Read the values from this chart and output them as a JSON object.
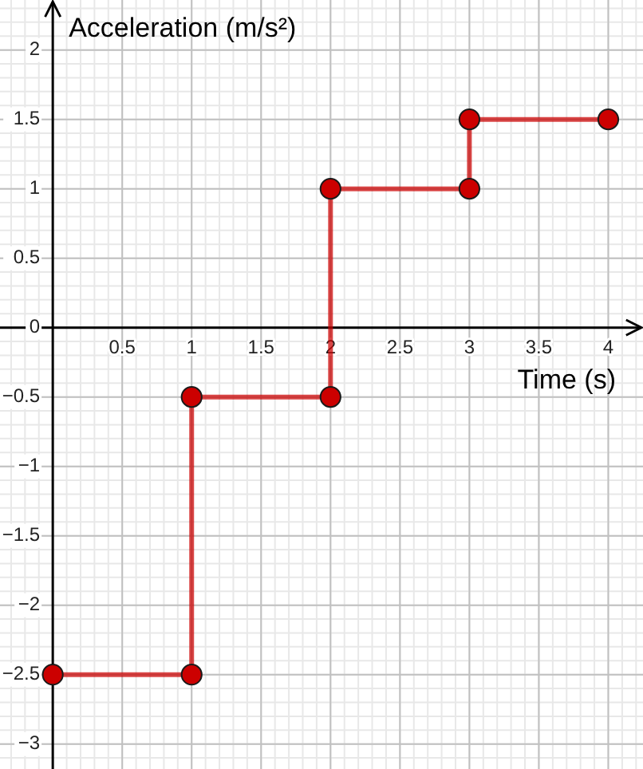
{
  "chart_data": {
    "type": "line",
    "xlabel": "Time (s)",
    "ylabel": "Acceleration (m/s²)",
    "x": [
      0,
      1,
      1,
      2,
      2,
      3,
      3,
      4
    ],
    "series": [
      {
        "color": "#cc0000",
        "values": [
          -2.5,
          -2.5,
          -0.5,
          -0.5,
          1,
          1,
          1.5,
          1.5
        ]
      }
    ],
    "xlim": [
      -0.38,
      4.25
    ],
    "ylim": [
      -3.18,
      2.36
    ],
    "xticks": [
      0.5,
      1,
      1.5,
      2,
      2.5,
      3,
      3.5,
      4
    ],
    "yticks": [
      {
        "value": -3,
        "label": "−3"
      },
      {
        "value": -2.5,
        "label": "−2.5"
      },
      {
        "value": -2,
        "label": "−2"
      },
      {
        "value": -1.5,
        "label": "−1.5"
      },
      {
        "value": -1,
        "label": "−1"
      },
      {
        "value": -0.5,
        "label": "−0.5"
      },
      0,
      0.5,
      1,
      1.5,
      2
    ],
    "grid": true,
    "marker": "circle",
    "line_style": "solid"
  }
}
